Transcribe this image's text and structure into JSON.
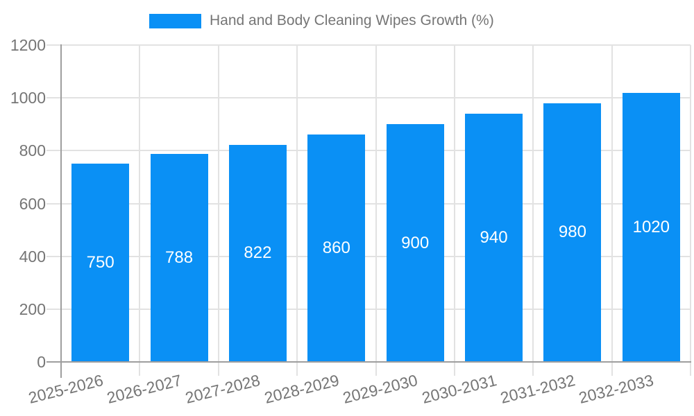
{
  "legend": {
    "label": "Hand and Body Cleaning Wipes Growth (%)"
  },
  "chart_data": {
    "type": "bar",
    "title": "Hand and Body Cleaning Wipes Growth (%)",
    "categories": [
      "2025-2026",
      "2026-2027",
      "2027-2028",
      "2028-2029",
      "2029-2030",
      "2030-2031",
      "2031-2032",
      "2032-2033"
    ],
    "values": [
      750,
      788,
      822,
      860,
      900,
      940,
      980,
      1020
    ],
    "xlabel": "",
    "ylabel": "",
    "ylim": [
      0,
      1200
    ],
    "yticks": [
      0,
      200,
      400,
      600,
      800,
      1000,
      1200
    ],
    "grid": true,
    "legend_position": "top",
    "bar_color": "#0a90f5",
    "value_label_color": "#ffffff",
    "axis_text_color": "#757575",
    "grid_color": "#e2e2e2",
    "axis_line_color": "#9e9e9e",
    "background_color": "#ffffff"
  }
}
